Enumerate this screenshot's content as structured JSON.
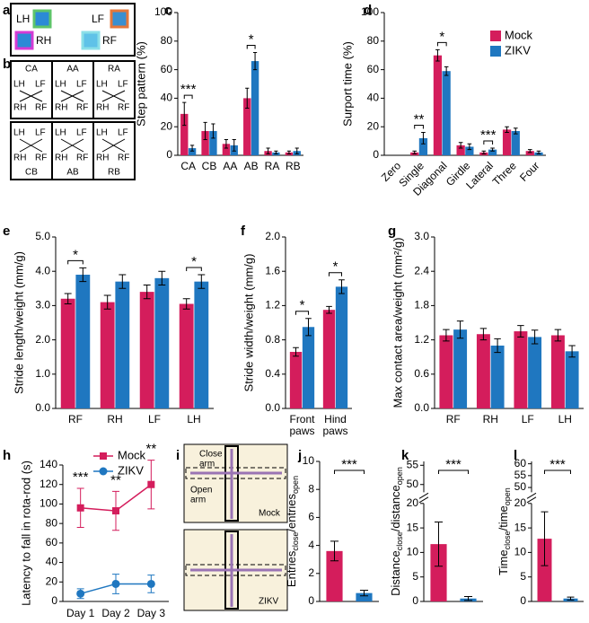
{
  "panel_letters": [
    "a",
    "b",
    "c",
    "d",
    "e",
    "f",
    "g",
    "h",
    "i",
    "j",
    "k",
    "l"
  ],
  "diagram_a": {
    "paws": [
      "LH",
      "LF",
      "RH",
      "RF"
    ]
  },
  "diagram_b": {
    "patterns": [
      "CA",
      "AA",
      "RA",
      "CB",
      "AB",
      "RB"
    ]
  },
  "diagram_i": {
    "close_arm": [
      "Close",
      "arm"
    ],
    "open_arm": [
      "Open",
      "arm"
    ],
    "groups": [
      "Mock",
      "ZIKV"
    ]
  },
  "chart_data": [
    {
      "type": "bar",
      "ylabel": "Step pattern (%)",
      "categories": [
        "CA",
        "CB",
        "AA",
        "AB",
        "RA",
        "RB"
      ],
      "series": [
        {
          "color": "#d41d5c",
          "values": [
            29,
            17,
            8,
            40,
            3,
            2
          ],
          "errors": [
            8,
            6,
            3,
            7,
            2,
            1
          ]
        },
        {
          "color": "#1f77c0",
          "values": [
            5,
            17,
            7,
            66,
            2,
            3
          ],
          "errors": [
            2,
            5,
            4,
            6,
            1,
            2
          ]
        }
      ],
      "significance": [
        "***",
        null,
        null,
        "*",
        null,
        null
      ],
      "ylim": [
        0,
        100
      ],
      "yticks": [
        0,
        20,
        40,
        60,
        80,
        100
      ]
    },
    {
      "type": "bar",
      "ylabel": "Surport time (%)",
      "categories": [
        "Zero",
        "Single",
        "Diagonal",
        "Girdle",
        "Lateral",
        "Three",
        "Four"
      ],
      "series": [
        {
          "name": "Mock",
          "color": "#d41d5c",
          "values": [
            0,
            2,
            70,
            7,
            2,
            18,
            3
          ],
          "errors": [
            0,
            1,
            4,
            2,
            1,
            2,
            1
          ]
        },
        {
          "name": "ZIKV",
          "color": "#1f77c0",
          "values": [
            0,
            12,
            59,
            6,
            4,
            17,
            2
          ],
          "errors": [
            0,
            4,
            3,
            2,
            1,
            2,
            1
          ]
        }
      ],
      "significance": [
        null,
        "**",
        "*",
        null,
        "***",
        null,
        null
      ],
      "legend": "upper right",
      "rotate_xlabels": true,
      "ylim": [
        0,
        100
      ],
      "yticks": [
        0,
        20,
        40,
        60,
        80,
        100
      ]
    },
    {
      "type": "bar",
      "ylabel": "Stride length/weight (mm/g)",
      "categories": [
        "RF",
        "RH",
        "LF",
        "LH"
      ],
      "series": [
        {
          "color": "#d41d5c",
          "values": [
            3.2,
            3.1,
            3.4,
            3.05
          ],
          "errors": [
            0.15,
            0.2,
            0.2,
            0.15
          ]
        },
        {
          "color": "#1f77c0",
          "values": [
            3.9,
            3.7,
            3.8,
            3.7
          ],
          "errors": [
            0.2,
            0.2,
            0.2,
            0.2
          ]
        }
      ],
      "significance": [
        "*",
        null,
        null,
        "*"
      ],
      "ylim": [
        0,
        5
      ],
      "yticks": [
        {
          "value": 0,
          "label": "0.0"
        },
        {
          "value": 1,
          "label": "1.0"
        },
        {
          "value": 2,
          "label": "2.0"
        },
        {
          "value": 3,
          "label": "3.0"
        },
        {
          "value": 4,
          "label": "4.0"
        },
        {
          "value": 5,
          "label": "5.0"
        }
      ]
    },
    {
      "type": "bar",
      "ylabel": "Stride width/weight (mm/g)",
      "categories": [
        "Front paws",
        "Hind paws"
      ],
      "series": [
        {
          "color": "#d41d5c",
          "values": [
            0.66,
            1.15
          ],
          "errors": [
            0.05,
            0.04
          ]
        },
        {
          "color": "#1f77c0",
          "values": [
            0.95,
            1.42
          ],
          "errors": [
            0.1,
            0.08
          ]
        }
      ],
      "significance": [
        "*",
        "*"
      ],
      "ylim": [
        0,
        2
      ],
      "yticks": [
        {
          "value": 0,
          "label": "0.0"
        },
        0.4,
        0.8,
        1.2,
        1.6,
        {
          "value": 2,
          "label": "2.0"
        }
      ]
    },
    {
      "type": "bar",
      "ylabel": "Max contact area/weight (mm²/g)",
      "categories": [
        "RF",
        "RH",
        "LF",
        "LH"
      ],
      "series": [
        {
          "color": "#d41d5c",
          "values": [
            1.28,
            1.3,
            1.35,
            1.28
          ],
          "errors": [
            0.1,
            0.1,
            0.1,
            0.1
          ]
        },
        {
          "color": "#1f77c0",
          "values": [
            1.38,
            1.1,
            1.25,
            1.0
          ],
          "errors": [
            0.15,
            0.12,
            0.12,
            0.1
          ]
        }
      ],
      "ylim": [
        0,
        3
      ],
      "yticks": [
        {
          "value": 0,
          "label": "0.0"
        },
        0.6,
        1.2,
        1.8,
        2.4,
        {
          "value": 3,
          "label": "3.0"
        }
      ]
    },
    {
      "type": "line",
      "ylabel": "Latency to fall in rota-rod (s)",
      "categories": [
        "Day 1",
        "Day 2",
        "Day 3"
      ],
      "series": [
        {
          "name": "Mock",
          "color": "#d41d5c",
          "marker": "square",
          "values": [
            96,
            93,
            120
          ],
          "errors": [
            20,
            20,
            25
          ]
        },
        {
          "name": "ZIKV",
          "color": "#1f77c0",
          "marker": "circle",
          "values": [
            8,
            18,
            18
          ],
          "errors": [
            5,
            10,
            9
          ]
        }
      ],
      "significance": [
        "***",
        "**",
        "**"
      ],
      "legend": "upper left",
      "ylim": [
        0,
        140
      ],
      "yticks": [
        0,
        20,
        40,
        60,
        80,
        100,
        120,
        140
      ]
    },
    {
      "type": "bar",
      "ylabel": [
        "Entries",
        "close",
        "/entries",
        "open"
      ],
      "values": [
        3.6,
        0.6
      ],
      "errors": [
        0.7,
        0.2
      ],
      "colors": [
        "#d41d5c",
        "#1f77c0"
      ],
      "significance": "***",
      "ylim": [
        0,
        10
      ],
      "yticks": [
        0,
        2,
        4,
        6,
        8,
        10
      ]
    },
    {
      "type": "bar",
      "ylabel": [
        "Distance",
        "close",
        "/distance",
        "open"
      ],
      "values": [
        11.7,
        0.6
      ],
      "errors": [
        4.5,
        0.4
      ],
      "colors": [
        "#d41d5c",
        "#1f77c0"
      ],
      "significance": "***",
      "axis_break": [
        20,
        48
      ],
      "ylim": [
        0,
        56
      ],
      "yticks": [
        0,
        5,
        10,
        15,
        20,
        50,
        55
      ]
    },
    {
      "type": "bar",
      "ylabel": [
        "Time",
        "close",
        "/time",
        "open"
      ],
      "values": [
        12.8,
        0.6
      ],
      "errors": [
        5.5,
        0.3
      ],
      "colors": [
        "#d41d5c",
        "#1f77c0"
      ],
      "significance": "***",
      "axis_break": [
        20,
        48
      ],
      "ylim": [
        0,
        61
      ],
      "yticks": [
        0,
        5,
        10,
        15,
        20,
        50,
        55,
        60
      ]
    }
  ]
}
